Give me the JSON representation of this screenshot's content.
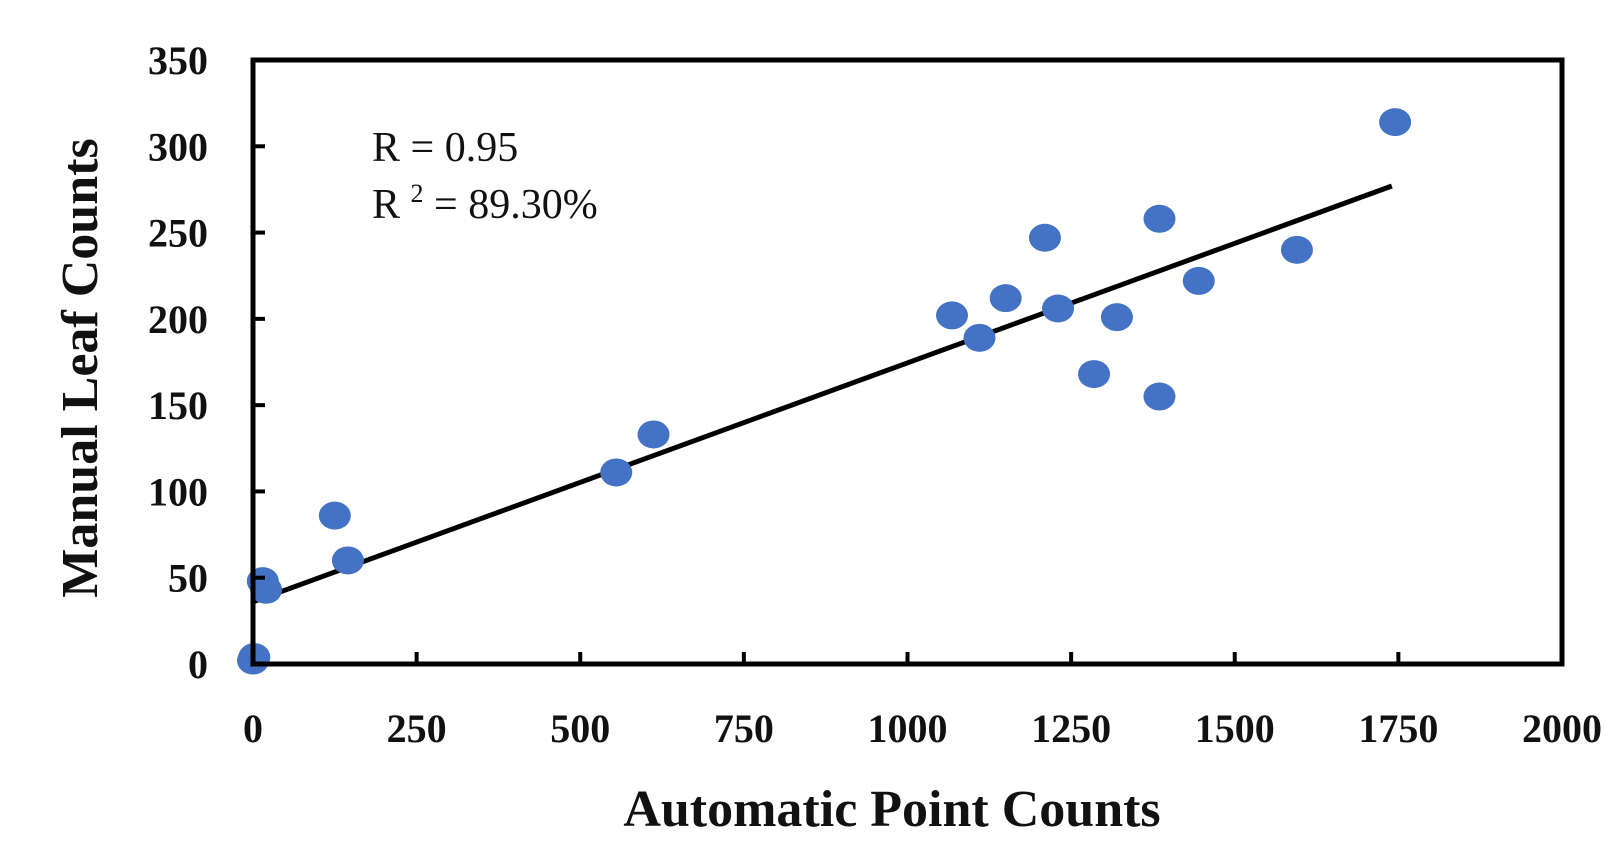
{
  "chart_data": {
    "type": "scatter",
    "title": "",
    "xlabel": "Automatic Point Counts",
    "ylabel": "Manual Leaf Counts",
    "xlim": [
      0,
      2000
    ],
    "ylim": [
      0,
      350
    ],
    "x_ticks": [
      0,
      250,
      500,
      750,
      1000,
      1250,
      1500,
      1750,
      2000
    ],
    "y_ticks": [
      0,
      50,
      100,
      150,
      200,
      250,
      300,
      350
    ],
    "x_tick_labels": [
      "0",
      "250",
      "500",
      "750",
      "1000",
      "1250",
      "1500",
      "1750",
      "2000"
    ],
    "y_tick_labels": [
      "0",
      "50",
      "100",
      "150",
      "200",
      "250",
      "300",
      "350"
    ],
    "grid": false,
    "legend": "none",
    "annotations": {
      "r_label": "R = 0.95",
      "r2_prefix": "R",
      "r2_superscript": "2",
      "r2_value": " = 89.30%"
    },
    "trendline": {
      "x_start": 0,
      "y_start": 36,
      "x_end": 1740,
      "y_end": 277
    },
    "series": [
      {
        "color": "#4472C4",
        "points": [
          {
            "x": 0,
            "y": 2
          },
          {
            "x": 2,
            "y": 4
          },
          {
            "x": 15,
            "y": 48
          },
          {
            "x": 20,
            "y": 43
          },
          {
            "x": 125,
            "y": 86
          },
          {
            "x": 145,
            "y": 60
          },
          {
            "x": 555,
            "y": 111
          },
          {
            "x": 612,
            "y": 133
          },
          {
            "x": 1068,
            "y": 202
          },
          {
            "x": 1110,
            "y": 189
          },
          {
            "x": 1150,
            "y": 212
          },
          {
            "x": 1210,
            "y": 247
          },
          {
            "x": 1230,
            "y": 206
          },
          {
            "x": 1285,
            "y": 168
          },
          {
            "x": 1320,
            "y": 201
          },
          {
            "x": 1385,
            "y": 258
          },
          {
            "x": 1385,
            "y": 155
          },
          {
            "x": 1445,
            "y": 222
          },
          {
            "x": 1595,
            "y": 240
          },
          {
            "x": 1745,
            "y": 314
          }
        ]
      }
    ]
  }
}
